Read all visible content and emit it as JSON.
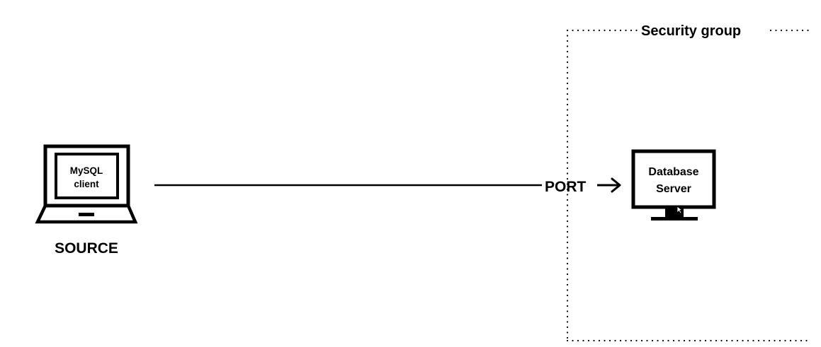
{
  "security_group": {
    "label": "Security group"
  },
  "source": {
    "label": "SOURCE",
    "screen_line1": "MySQL",
    "screen_line2": "client",
    "icon": "laptop-icon"
  },
  "connection": {
    "port_label": "PORT",
    "arrow_icon": "arrow-right-icon"
  },
  "database": {
    "line1": "Database",
    "line2": "Server",
    "icon": "monitor-icon",
    "cursor_icon": "mouse-cursor-icon"
  }
}
